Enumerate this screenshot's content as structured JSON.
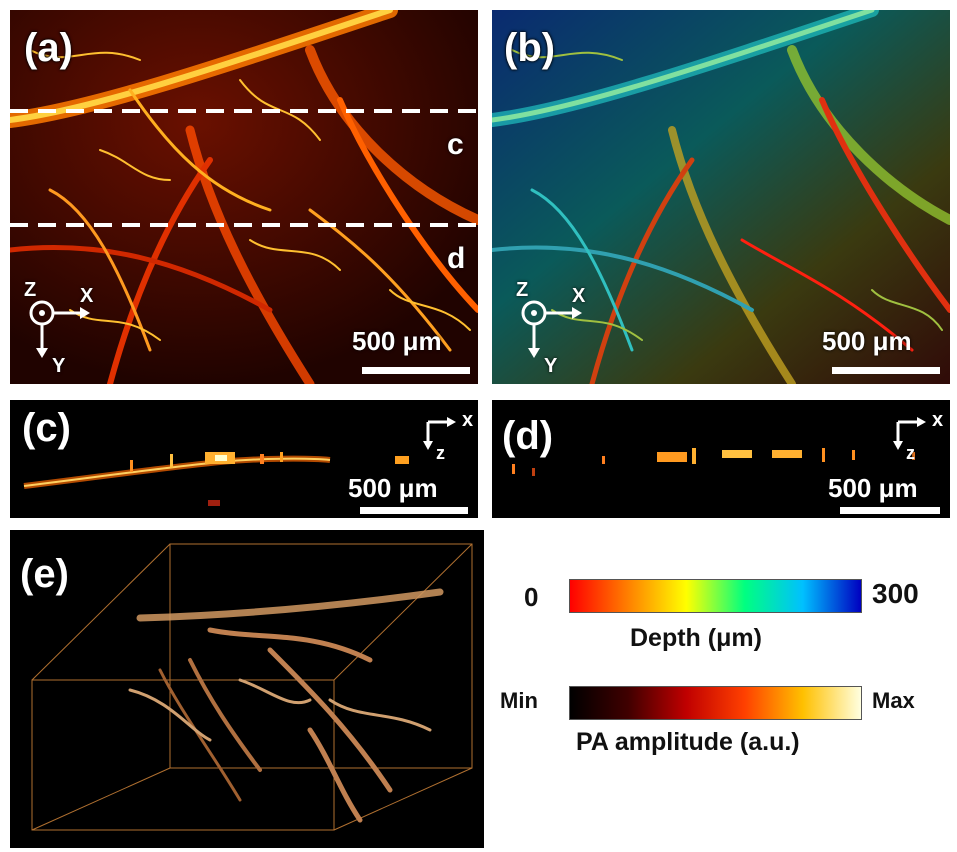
{
  "panels": {
    "a": {
      "label": "(a)",
      "line_c": "c",
      "line_d": "d",
      "scale": "500 μm"
    },
    "b": {
      "label": "(b)",
      "scale": "500 μm"
    },
    "c": {
      "label": "(c)",
      "scale": "500 μm"
    },
    "d": {
      "label": "(d)",
      "scale": "500 μm"
    },
    "e": {
      "label": "(e)"
    }
  },
  "axes": {
    "x": "X",
    "y": "Y",
    "z": "Z",
    "x_lower": "x",
    "z_lower": "z"
  },
  "colorbars": {
    "depth": {
      "min": "0",
      "max": "300",
      "title": "Depth (μm)",
      "colors": [
        "#ff0000",
        "#ff8000",
        "#ffff00",
        "#00ff80",
        "#00c0ff",
        "#0000c0"
      ]
    },
    "amplitude": {
      "min": "Min",
      "max": "Max",
      "title": "PA amplitude (a.u.)",
      "colors": [
        "#000000",
        "#400000",
        "#c00000",
        "#ff4000",
        "#ffc000",
        "#ffffe0"
      ]
    }
  }
}
